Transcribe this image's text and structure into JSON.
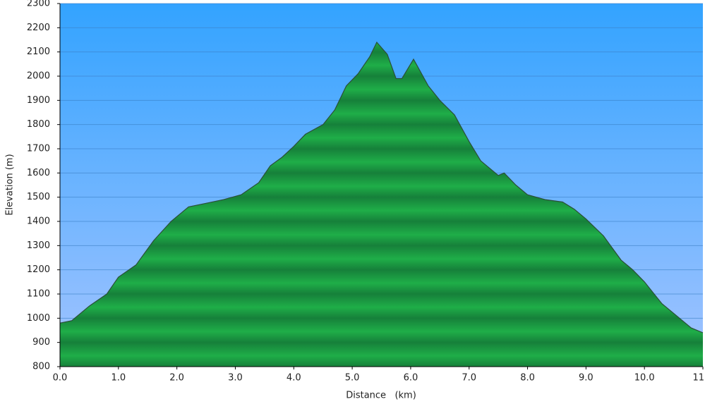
{
  "chart_data": {
    "type": "area",
    "x_label": "Distance   (km)",
    "y_label": "Elevation (m)",
    "x": [
      0,
      0.2,
      0.5,
      0.8,
      1.0,
      1.3,
      1.6,
      1.9,
      2.2,
      2.5,
      2.8,
      3.1,
      3.4,
      3.6,
      3.8,
      4.0,
      4.2,
      4.5,
      4.7,
      4.9,
      5.1,
      5.3,
      5.42,
      5.6,
      5.75,
      5.85,
      6.05,
      6.3,
      6.5,
      6.75,
      7.0,
      7.2,
      7.5,
      7.6,
      7.8,
      8.0,
      8.3,
      8.6,
      8.8,
      9.0,
      9.3,
      9.6,
      9.8,
      10.0,
      10.3,
      10.6,
      10.8,
      11.0
    ],
    "values": [
      980,
      990,
      1050,
      1100,
      1170,
      1220,
      1320,
      1400,
      1460,
      1475,
      1490,
      1510,
      1560,
      1630,
      1665,
      1710,
      1760,
      1800,
      1860,
      1960,
      2010,
      2080,
      2140,
      2090,
      1990,
      1990,
      2070,
      1960,
      1900,
      1840,
      1730,
      1650,
      1590,
      1600,
      1550,
      1510,
      1490,
      1480,
      1450,
      1410,
      1340,
      1240,
      1200,
      1150,
      1060,
      1000,
      960,
      940
    ],
    "color": "#1fae48",
    "xlim": [
      0,
      11
    ],
    "xticks": [
      {
        "value": 0,
        "label": "0.0"
      },
      {
        "value": 1,
        "label": "1.0"
      },
      {
        "value": 2,
        "label": "2.0"
      },
      {
        "value": 3,
        "label": "3.0"
      },
      {
        "value": 4,
        "label": "4.0"
      },
      {
        "value": 5,
        "label": "5.0"
      },
      {
        "value": 6,
        "label": "6.0"
      },
      {
        "value": 7,
        "label": "7.0"
      },
      {
        "value": 8,
        "label": "8.0"
      },
      {
        "value": 9,
        "label": "9.0"
      },
      {
        "value": 10,
        "label": "10.0"
      },
      {
        "value": 11,
        "label": "11.0"
      }
    ],
    "ylim": [
      800,
      2300
    ],
    "yticks": [
      800,
      900,
      1000,
      1100,
      1200,
      1300,
      1400,
      1500,
      1600,
      1700,
      1800,
      1900,
      2000,
      2100,
      2200,
      2300
    ],
    "grid": true
  }
}
